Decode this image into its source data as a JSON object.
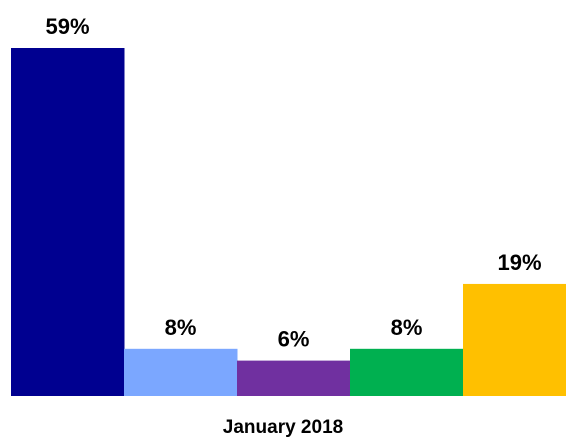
{
  "chart_data": {
    "type": "bar",
    "categories": [
      "January 2018"
    ],
    "series": [
      {
        "values": [
          59
        ],
        "label": "59%",
        "color": "#000090"
      },
      {
        "values": [
          8
        ],
        "label": "8%",
        "color": "#7ba7ff"
      },
      {
        "values": [
          6
        ],
        "label": "6%",
        "color": "#7030a0"
      },
      {
        "values": [
          8
        ],
        "label": "8%",
        "color": "#00b050"
      },
      {
        "values": [
          19
        ],
        "label": "19%",
        "color": "#ffc000"
      }
    ],
    "ylim": [
      0,
      59
    ],
    "grid": false,
    "legend": "none",
    "title": "",
    "xlabel": "",
    "ylabel": ""
  }
}
